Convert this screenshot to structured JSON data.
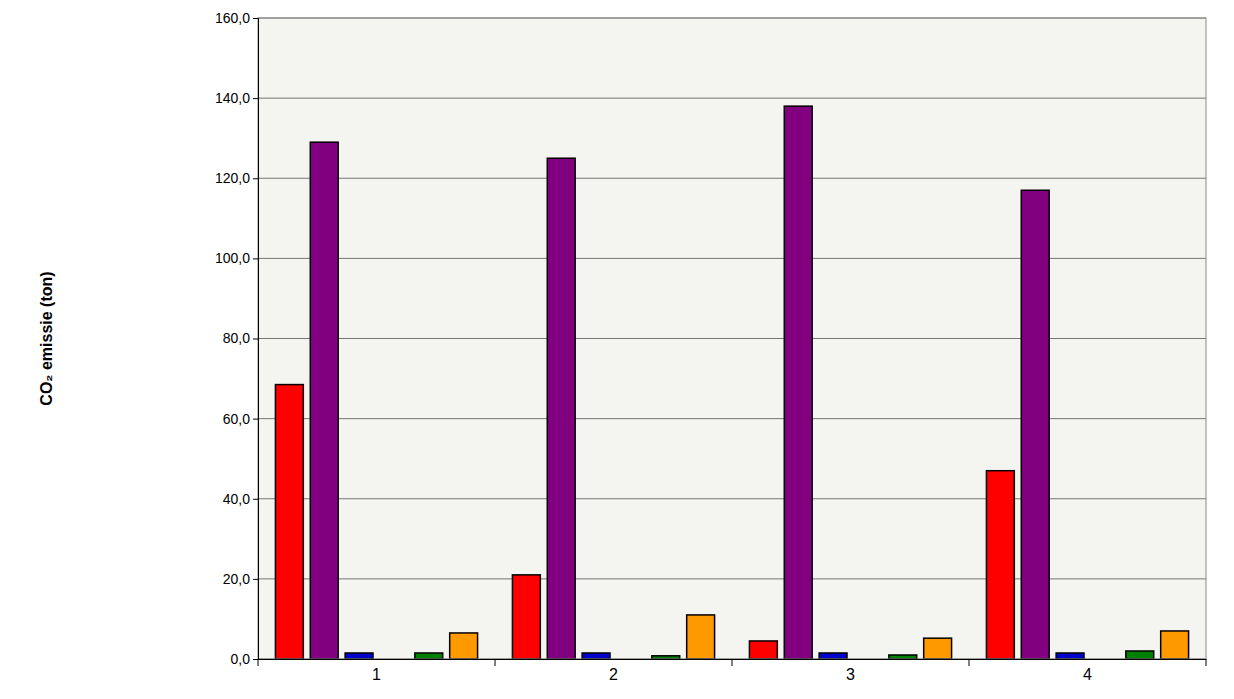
{
  "chart_data": {
    "type": "bar",
    "y_label": "CO₂ emissie (ton)",
    "categories": [
      "1",
      "2",
      "3",
      "4"
    ],
    "series": [
      {
        "color": "#ff0000",
        "values": [
          68.5,
          21,
          4.5,
          47
        ]
      },
      {
        "color": "#800080",
        "values": [
          129,
          125,
          138,
          117
        ]
      },
      {
        "color": "#0000cc",
        "values": [
          1.5,
          1.5,
          1.5,
          1.5
        ]
      },
      {
        "color": "#00cccc",
        "values": [
          0,
          0,
          0,
          0
        ]
      },
      {
        "color": "#008000",
        "values": [
          1.5,
          0.8,
          1,
          2
        ]
      },
      {
        "color": "#ff9900",
        "values": [
          6.5,
          11,
          5.2,
          7
        ]
      }
    ],
    "ylim": [
      0,
      160
    ],
    "yticks": [
      {
        "value": 0,
        "label": "0,0"
      },
      {
        "value": 20,
        "label": "20,0"
      },
      {
        "value": 40,
        "label": "40,0"
      },
      {
        "value": 60,
        "label": "60,0"
      },
      {
        "value": 80,
        "label": "80,0"
      },
      {
        "value": 100,
        "label": "100,0"
      },
      {
        "value": 120,
        "label": "120,0"
      },
      {
        "value": 140,
        "label": "140,0"
      },
      {
        "value": 160,
        "label": "160,0"
      }
    ],
    "grid": true
  }
}
